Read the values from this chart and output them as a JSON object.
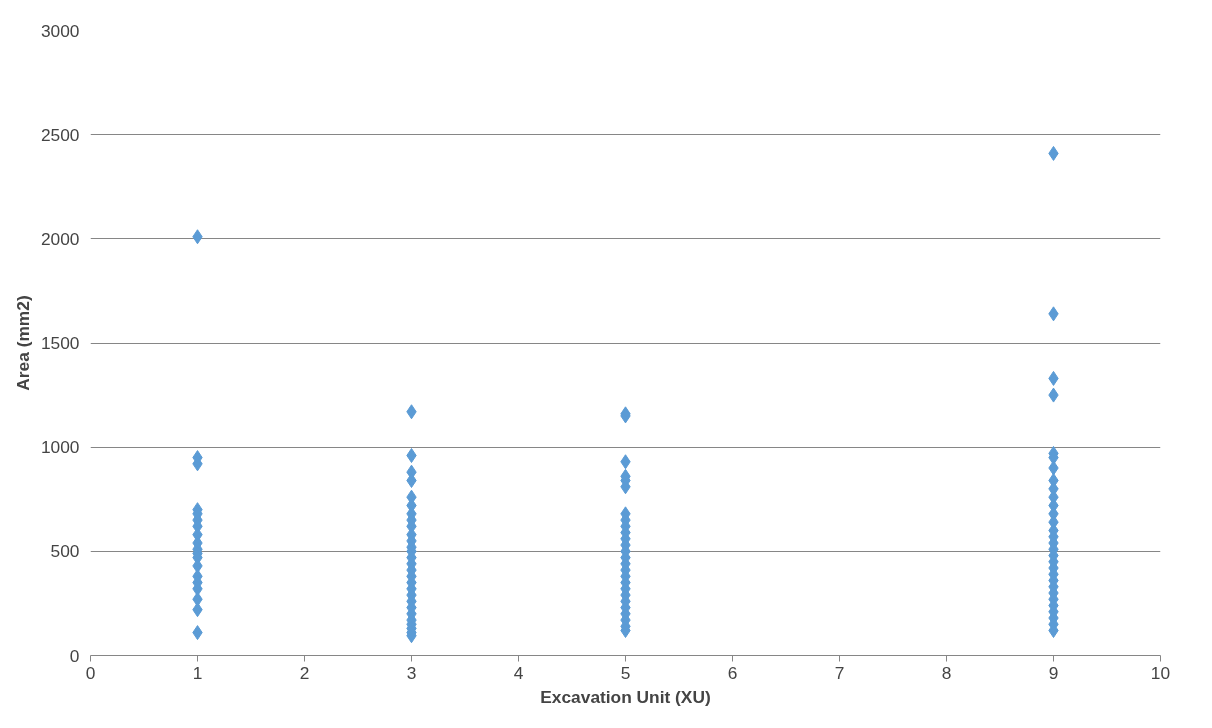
{
  "chart_data": {
    "type": "scatter",
    "xlabel": "Excavation Unit (XU)",
    "ylabel": "Area (mm2)",
    "x": [
      1,
      1,
      1,
      1,
      1,
      1,
      1,
      1,
      1,
      1,
      1,
      1,
      1,
      1,
      1,
      1,
      1,
      1,
      1,
      3,
      3,
      3,
      3,
      3,
      3,
      3,
      3,
      3,
      3,
      3,
      3,
      3,
      3,
      3,
      3,
      3,
      3,
      3,
      3,
      3,
      3,
      3,
      3,
      3,
      3,
      3,
      3,
      5,
      5,
      5,
      5,
      5,
      5,
      5,
      5,
      5,
      5,
      5,
      5,
      5,
      5,
      5,
      5,
      5,
      5,
      5,
      5,
      5,
      5,
      5,
      5,
      5,
      5,
      9,
      9,
      9,
      9,
      9,
      9,
      9,
      9,
      9,
      9,
      9,
      9,
      9,
      9,
      9,
      9,
      9,
      9,
      9,
      9,
      9,
      9,
      9,
      9,
      9,
      9,
      9,
      9,
      9,
      9
    ],
    "values": [
      2010,
      950,
      920,
      700,
      680,
      650,
      620,
      580,
      540,
      510,
      490,
      470,
      430,
      380,
      350,
      320,
      270,
      220,
      110,
      1170,
      960,
      880,
      840,
      760,
      720,
      680,
      650,
      620,
      580,
      550,
      520,
      500,
      470,
      440,
      410,
      380,
      350,
      320,
      290,
      260,
      230,
      200,
      170,
      150,
      130,
      110,
      95,
      1160,
      1150,
      930,
      860,
      840,
      810,
      680,
      650,
      620,
      590,
      560,
      530,
      500,
      470,
      440,
      410,
      380,
      350,
      320,
      290,
      260,
      230,
      200,
      170,
      140,
      120,
      2410,
      1640,
      1330,
      1250,
      970,
      950,
      900,
      840,
      800,
      760,
      720,
      680,
      640,
      600,
      570,
      540,
      510,
      480,
      450,
      420,
      390,
      360,
      330,
      300,
      270,
      240,
      210,
      180,
      150,
      120
    ],
    "color": "#5b9bd5",
    "marker": "diamond",
    "xlim": [
      0,
      10
    ],
    "xticks": [
      0,
      1,
      2,
      3,
      4,
      5,
      6,
      7,
      8,
      9,
      10
    ],
    "ylim": [
      0,
      3000
    ],
    "yticks": [
      0,
      500,
      1000,
      1500,
      2000,
      2500,
      3000
    ],
    "grid": "y"
  }
}
